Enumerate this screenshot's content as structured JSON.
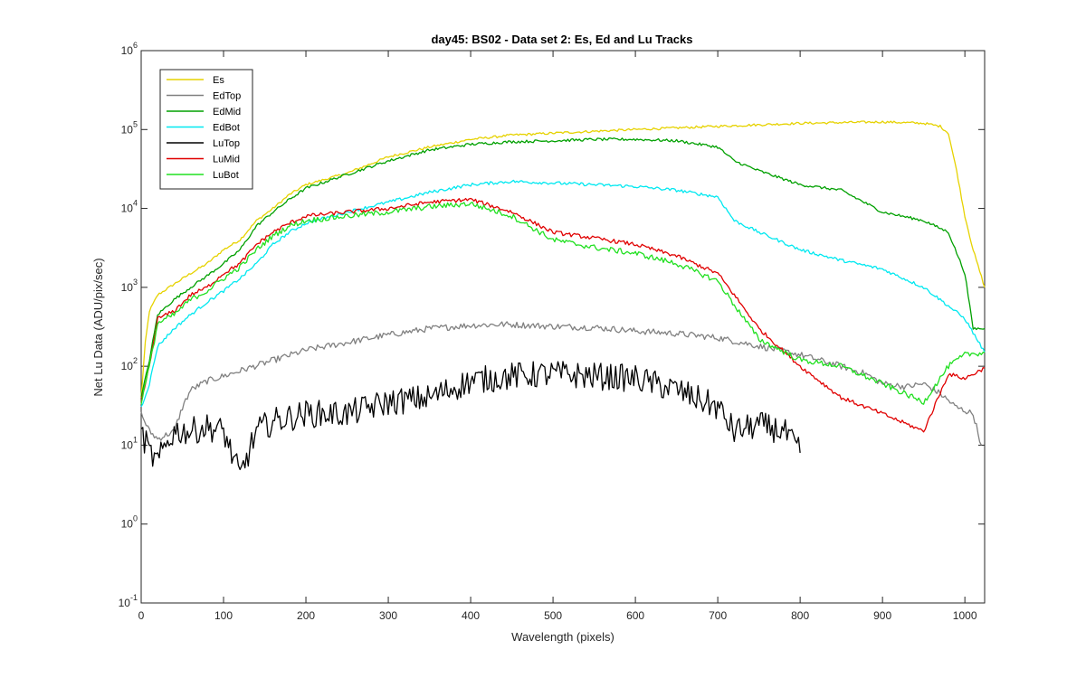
{
  "chart_data": {
    "type": "line",
    "title": "day45: BS02 - Data set 2: Es, Ed and Lu Tracks",
    "xlabel": "Wavelength (pixels)",
    "ylabel": "Net Lu Data (ADU/pix/sec)",
    "xlim": [
      0,
      1024
    ],
    "ylim": [
      0.1,
      1000000
    ],
    "yscale": "log",
    "x_ticks": [
      0,
      100,
      200,
      300,
      400,
      500,
      600,
      700,
      800,
      900,
      1000
    ],
    "y_ticks": [
      {
        "value": 0.1,
        "base": "10",
        "exp": "-1"
      },
      {
        "value": 1,
        "base": "10",
        "exp": "0"
      },
      {
        "value": 10,
        "base": "10",
        "exp": "1"
      },
      {
        "value": 100,
        "base": "10",
        "exp": "2"
      },
      {
        "value": 1000,
        "base": "10",
        "exp": "3"
      },
      {
        "value": 10000,
        "base": "10",
        "exp": "4"
      },
      {
        "value": 100000,
        "base": "10",
        "exp": "5"
      },
      {
        "value": 1000000,
        "base": "10",
        "exp": "6"
      }
    ],
    "legend_position": "top-left",
    "series": [
      {
        "name": "Es",
        "color": "#e6d200",
        "points": [
          [
            0,
            40
          ],
          [
            5,
            200
          ],
          [
            10,
            500
          ],
          [
            20,
            800
          ],
          [
            40,
            1100
          ],
          [
            60,
            1500
          ],
          [
            80,
            2000
          ],
          [
            100,
            3000
          ],
          [
            120,
            4000
          ],
          [
            140,
            7000
          ],
          [
            160,
            10000
          ],
          [
            180,
            15000
          ],
          [
            200,
            20000
          ],
          [
            250,
            28000
          ],
          [
            300,
            45000
          ],
          [
            350,
            60000
          ],
          [
            400,
            75000
          ],
          [
            450,
            85000
          ],
          [
            500,
            90000
          ],
          [
            550,
            95000
          ],
          [
            600,
            100000
          ],
          [
            700,
            110000
          ],
          [
            800,
            120000
          ],
          [
            900,
            125000
          ],
          [
            950,
            120000
          ],
          [
            970,
            110000
          ],
          [
            980,
            90000
          ],
          [
            990,
            30000
          ],
          [
            1000,
            8000
          ],
          [
            1010,
            3000
          ],
          [
            1024,
            1000
          ]
        ]
      },
      {
        "name": "EdTop",
        "color": "#808080",
        "points": [
          [
            0,
            25
          ],
          [
            10,
            15
          ],
          [
            20,
            12
          ],
          [
            40,
            15
          ],
          [
            50,
            30
          ],
          [
            60,
            50
          ],
          [
            80,
            65
          ],
          [
            100,
            75
          ],
          [
            150,
            110
          ],
          [
            200,
            160
          ],
          [
            250,
            200
          ],
          [
            300,
            250
          ],
          [
            350,
            300
          ],
          [
            400,
            330
          ],
          [
            440,
            340
          ],
          [
            500,
            320
          ],
          [
            550,
            310
          ],
          [
            600,
            280
          ],
          [
            650,
            260
          ],
          [
            700,
            230
          ],
          [
            750,
            180
          ],
          [
            800,
            140
          ],
          [
            850,
            100
          ],
          [
            880,
            80
          ],
          [
            900,
            60
          ],
          [
            930,
            55
          ],
          [
            950,
            60
          ],
          [
            970,
            45
          ],
          [
            990,
            30
          ],
          [
            1010,
            25
          ],
          [
            1020,
            10
          ]
        ]
      },
      {
        "name": "EdMid",
        "color": "#00a000",
        "points": [
          [
            0,
            40
          ],
          [
            10,
            120
          ],
          [
            20,
            450
          ],
          [
            40,
            700
          ],
          [
            60,
            1000
          ],
          [
            80,
            1400
          ],
          [
            100,
            2000
          ],
          [
            120,
            3000
          ],
          [
            140,
            6000
          ],
          [
            160,
            9000
          ],
          [
            180,
            13000
          ],
          [
            200,
            18000
          ],
          [
            250,
            27000
          ],
          [
            300,
            40000
          ],
          [
            350,
            55000
          ],
          [
            400,
            65000
          ],
          [
            450,
            70000
          ],
          [
            500,
            72000
          ],
          [
            550,
            75000
          ],
          [
            600,
            75000
          ],
          [
            650,
            72000
          ],
          [
            700,
            60000
          ],
          [
            720,
            40000
          ],
          [
            750,
            30000
          ],
          [
            800,
            20000
          ],
          [
            850,
            17000
          ],
          [
            900,
            9000
          ],
          [
            950,
            7000
          ],
          [
            980,
            5000
          ],
          [
            1000,
            1500
          ],
          [
            1010,
            300
          ],
          [
            1024,
            300
          ]
        ]
      },
      {
        "name": "EdBot",
        "color": "#00e8f0",
        "points": [
          [
            0,
            30
          ],
          [
            10,
            60
          ],
          [
            20,
            180
          ],
          [
            40,
            300
          ],
          [
            60,
            450
          ],
          [
            80,
            650
          ],
          [
            100,
            900
          ],
          [
            120,
            1300
          ],
          [
            140,
            2000
          ],
          [
            160,
            3500
          ],
          [
            180,
            5000
          ],
          [
            200,
            6500
          ],
          [
            250,
            9000
          ],
          [
            300,
            12000
          ],
          [
            350,
            16000
          ],
          [
            400,
            20000
          ],
          [
            450,
            22000
          ],
          [
            500,
            21000
          ],
          [
            550,
            20000
          ],
          [
            600,
            19000
          ],
          [
            650,
            17000
          ],
          [
            700,
            14000
          ],
          [
            720,
            7000
          ],
          [
            750,
            5000
          ],
          [
            800,
            3000
          ],
          [
            850,
            2200
          ],
          [
            900,
            1700
          ],
          [
            950,
            1000
          ],
          [
            970,
            700
          ],
          [
            1000,
            400
          ],
          [
            1024,
            150
          ]
        ]
      },
      {
        "name": "LuTop",
        "color": "#000000",
        "points": [
          [
            0,
            15
          ],
          [
            10,
            8
          ],
          [
            20,
            6
          ],
          [
            30,
            10
          ],
          [
            40,
            15
          ],
          [
            60,
            15
          ],
          [
            80,
            17
          ],
          [
            100,
            15
          ],
          [
            120,
            4
          ],
          [
            140,
            15
          ],
          [
            160,
            20
          ],
          [
            200,
            25
          ],
          [
            250,
            25
          ],
          [
            300,
            35
          ],
          [
            350,
            40
          ],
          [
            400,
            65
          ],
          [
            450,
            75
          ],
          [
            500,
            80
          ],
          [
            550,
            75
          ],
          [
            600,
            70
          ],
          [
            650,
            50
          ],
          [
            700,
            30
          ],
          [
            720,
            15
          ],
          [
            750,
            18
          ],
          [
            780,
            15
          ],
          [
            800,
            8
          ]
        ]
      },
      {
        "name": "LuMid",
        "color": "#e00000",
        "points": [
          [
            0,
            35
          ],
          [
            10,
            100
          ],
          [
            20,
            400
          ],
          [
            40,
            500
          ],
          [
            60,
            800
          ],
          [
            80,
            1000
          ],
          [
            100,
            1500
          ],
          [
            120,
            2000
          ],
          [
            140,
            3500
          ],
          [
            160,
            5000
          ],
          [
            180,
            6500
          ],
          [
            200,
            8000
          ],
          [
            250,
            9000
          ],
          [
            300,
            10000
          ],
          [
            350,
            12000
          ],
          [
            400,
            13000
          ],
          [
            450,
            9000
          ],
          [
            500,
            5000
          ],
          [
            550,
            4200
          ],
          [
            600,
            3500
          ],
          [
            650,
            2500
          ],
          [
            700,
            1500
          ],
          [
            720,
            800
          ],
          [
            750,
            300
          ],
          [
            800,
            100
          ],
          [
            850,
            40
          ],
          [
            900,
            25
          ],
          [
            950,
            15
          ],
          [
            980,
            80
          ],
          [
            1000,
            70
          ],
          [
            1024,
            95
          ]
        ]
      },
      {
        "name": "LuBot",
        "color": "#20e020",
        "points": [
          [
            0,
            35
          ],
          [
            10,
            100
          ],
          [
            20,
            350
          ],
          [
            40,
            450
          ],
          [
            60,
            700
          ],
          [
            80,
            900
          ],
          [
            100,
            1300
          ],
          [
            120,
            1800
          ],
          [
            140,
            3000
          ],
          [
            160,
            4500
          ],
          [
            180,
            6000
          ],
          [
            200,
            7000
          ],
          [
            250,
            8000
          ],
          [
            300,
            9000
          ],
          [
            350,
            10500
          ],
          [
            400,
            11500
          ],
          [
            450,
            8000
          ],
          [
            500,
            4000
          ],
          [
            550,
            3200
          ],
          [
            600,
            2700
          ],
          [
            650,
            2000
          ],
          [
            700,
            1200
          ],
          [
            720,
            600
          ],
          [
            750,
            220
          ],
          [
            800,
            120
          ],
          [
            850,
            100
          ],
          [
            900,
            60
          ],
          [
            950,
            35
          ],
          [
            980,
            100
          ],
          [
            1000,
            140
          ],
          [
            1024,
            150
          ]
        ]
      }
    ]
  }
}
